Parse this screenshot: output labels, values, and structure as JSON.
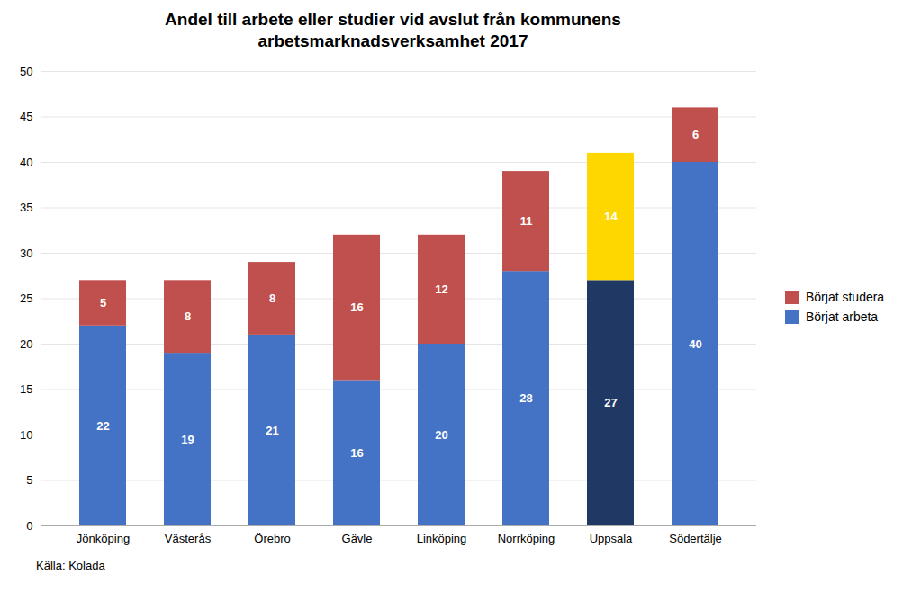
{
  "chart_data": {
    "type": "bar",
    "stacked": true,
    "title": "Andel till arbete eller studier vid avslut från kommunens\narbetsmarknadsverksamhet 2017",
    "categories": [
      "Jönköping",
      "Västerås",
      "Örebro",
      "Gävle",
      "Linköping",
      "Norrköping",
      "Uppsala",
      "Södertälje"
    ],
    "series": [
      {
        "name": "Börjat arbeta",
        "color": "#4472C4",
        "colors": [
          "#4472C4",
          "#4472C4",
          "#4472C4",
          "#4472C4",
          "#4472C4",
          "#4472C4",
          "#1F3864",
          "#4472C4"
        ],
        "values": [
          22,
          19,
          21,
          16,
          20,
          28,
          27,
          40
        ]
      },
      {
        "name": "Börjat studera",
        "color": "#C0504D",
        "colors": [
          "#C0504D",
          "#C0504D",
          "#C0504D",
          "#C0504D",
          "#C0504D",
          "#C0504D",
          "#FFD700",
          "#C0504D"
        ],
        "values": [
          5,
          8,
          8,
          16,
          12,
          11,
          14,
          6
        ]
      }
    ],
    "ylim": [
      0,
      50
    ],
    "yticks": [
      0,
      5,
      10,
      15,
      20,
      25,
      30,
      35,
      40,
      45,
      50
    ],
    "grid": true,
    "data_labels": true,
    "legend": "right",
    "annotations": [
      "Källa: Kolada"
    ]
  }
}
